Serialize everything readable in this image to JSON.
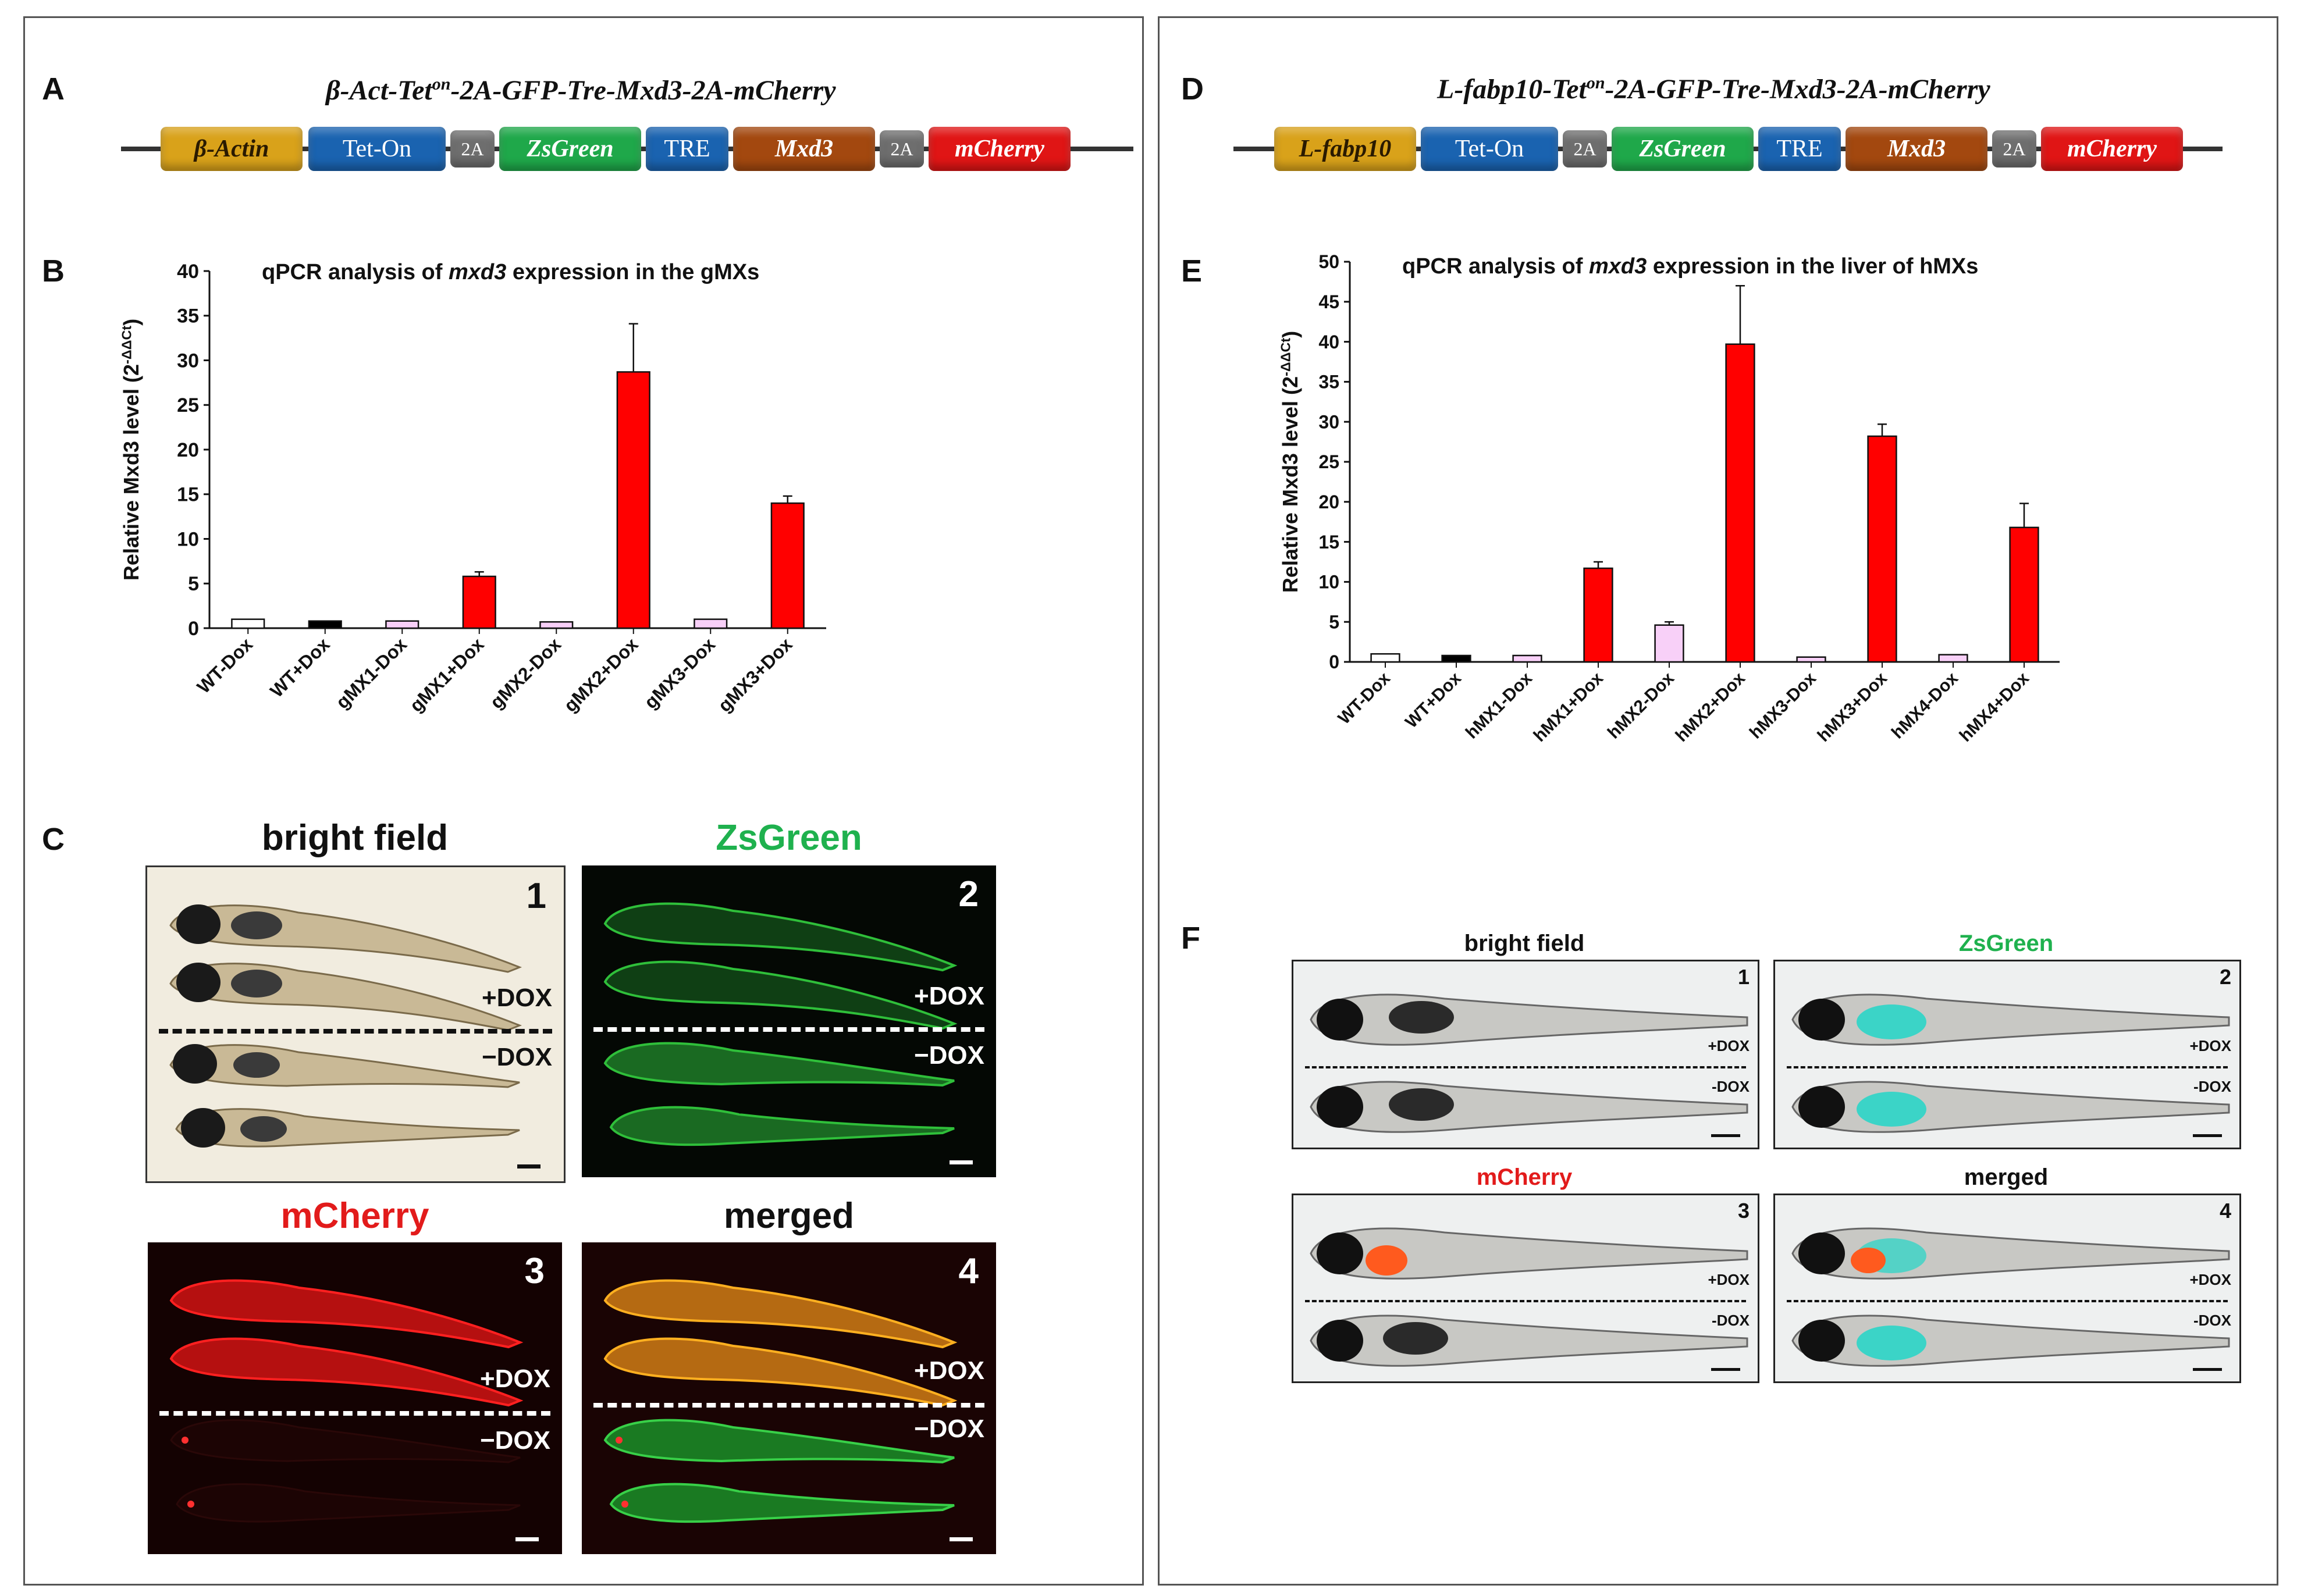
{
  "left": {
    "label_a": "A",
    "construct_a": {
      "prefix": "β-Act-Tet",
      "sup": "on",
      "suffix": "-2A-GFP-Tre-Mxd3-2A-mCherry"
    },
    "genes_a": [
      "β-Actin",
      "Tet-On",
      "2A",
      "ZsGreen",
      "TRE",
      "Mxd3",
      "2A",
      "mCherry"
    ],
    "label_b": "B",
    "label_c": "C",
    "images": {
      "bright_field": "bright field",
      "zsgreen": "ZsGreen",
      "mcherry": "mCherry",
      "merged": "merged",
      "nums": [
        "1",
        "2",
        "3",
        "4"
      ],
      "plus_dox": "+DOX",
      "minus_dox": "−DOX"
    }
  },
  "right": {
    "label_d": "D",
    "construct_d": {
      "prefix": "L-fabp10-Tet",
      "sup": "on",
      "suffix": "-2A-GFP-Tre-Mxd3-2A-mCherry"
    },
    "genes_d": [
      "L-fabp10",
      "Tet-On",
      "2A",
      "ZsGreen",
      "TRE",
      "Mxd3",
      "2A",
      "mCherry"
    ],
    "label_e": "E",
    "label_f": "F",
    "images": {
      "bright_field": "bright field",
      "zsgreen": "ZsGreen",
      "mcherry": "mCherry",
      "merged": "merged",
      "nums": [
        "1",
        "2",
        "3",
        "4"
      ],
      "plus_dox": "+DOX",
      "minus_dox": "-DOX"
    }
  },
  "colors": {
    "actin": "#d9a21a",
    "teton": "#1a63b0",
    "twoA": "#6e6e6e",
    "zsgreen": "#1fa84a",
    "tre": "#1a63b0",
    "mxd3": "#a3480f",
    "mcherry": "#e01515",
    "bar_red": "#ff0000",
    "bar_pink": "#f8d0f8",
    "bar_black": "#000000",
    "zsgreen_text": "#1fb14e",
    "mcherry_text": "#e21b1b"
  },
  "chart_data": [
    {
      "type": "bar",
      "title_parts": [
        "qPCR analysis of ",
        "mxd3",
        " expression in the gMXs"
      ],
      "ylabel": "Relative Mxd3 level (2-ΔΔCt)",
      "ylabel_main": "Relative Mxd3 level (2",
      "ylabel_sup": "-ΔΔCt",
      "ylabel_close": ")",
      "ylim": [
        0,
        40
      ],
      "yticks": [
        "0",
        "5",
        "10",
        "15",
        "20",
        "25",
        "30",
        "35",
        "40"
      ],
      "categories": [
        "WT-Dox",
        "WT+Dox",
        "gMX1-Dox",
        "gMX1+Dox",
        "gMX2-Dox",
        "gMX2+Dox",
        "gMX3-Dox",
        "gMX3+Dox"
      ],
      "values": [
        1.0,
        0.8,
        0.8,
        5.8,
        0.7,
        28.7,
        1.0,
        14.0
      ],
      "errors": [
        0.0,
        0.0,
        0.0,
        0.5,
        0.0,
        5.4,
        0.0,
        0.8
      ],
      "fills": [
        "white",
        "black",
        "pink",
        "red",
        "pink",
        "red",
        "pink",
        "red"
      ]
    },
    {
      "type": "bar",
      "title_parts": [
        "qPCR analysis of ",
        "mxd3",
        " expression in the liver of hMXs"
      ],
      "ylabel": "Relative Mxd3 level (2-ΔΔCt)",
      "ylabel_main": "Relative Mxd3 level (2",
      "ylabel_sup": "-ΔΔCt",
      "ylabel_close": ")",
      "ylim": [
        0,
        50
      ],
      "yticks": [
        "0",
        "5",
        "10",
        "15",
        "20",
        "25",
        "30",
        "35",
        "40",
        "45",
        "50"
      ],
      "categories": [
        "WT-Dox",
        "WT+Dox",
        "hMX1-Dox",
        "hMX1+Dox",
        "hMX2-Dox",
        "hMX2+Dox",
        "hMX3-Dox",
        "hMX3+Dox",
        "hMX4-Dox",
        "hMX4+Dox"
      ],
      "values": [
        1.0,
        0.8,
        0.8,
        11.7,
        4.6,
        39.7,
        0.6,
        28.2,
        0.9,
        16.8
      ],
      "errors": [
        0.0,
        0.0,
        0.0,
        0.8,
        0.4,
        7.3,
        0.0,
        1.5,
        0.0,
        3.0
      ],
      "fills": [
        "white",
        "black",
        "pink",
        "red",
        "pink",
        "red",
        "pink",
        "red",
        "pink",
        "red"
      ]
    }
  ]
}
